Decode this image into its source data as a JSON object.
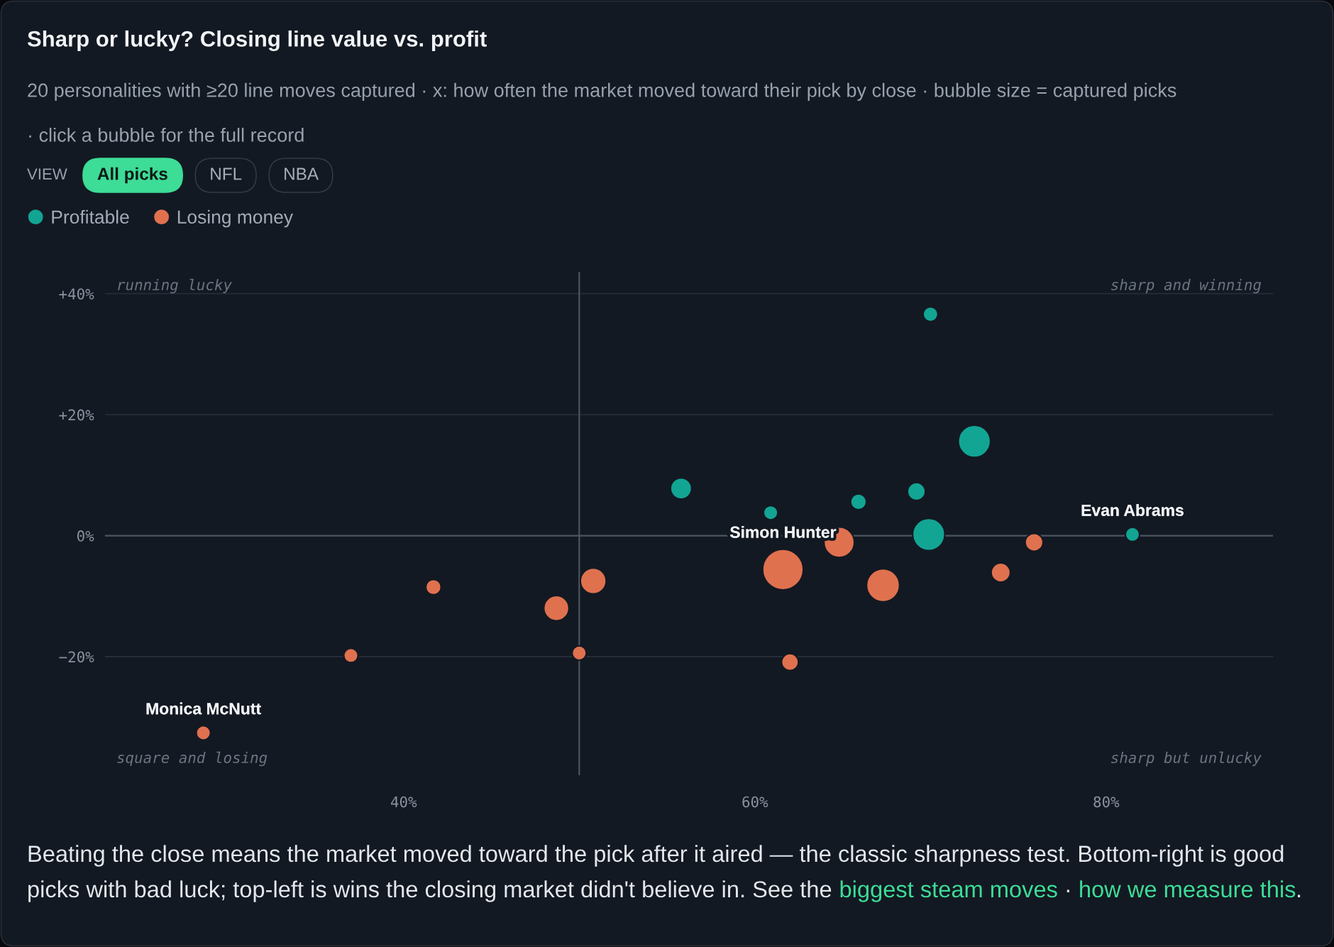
{
  "chart_data": {
    "type": "bubble",
    "title": "Sharp or lucky? Closing line value vs. profit",
    "subtitle": "20 personalities with ≥20 line moves captured · x: how often the market moved toward their pick by close · bubble size = captured picks\n· click a bubble for the full record",
    "xlim": [
      23,
      89.5
    ],
    "ylim": [
      -39.6,
      43.6
    ],
    "xticks": [
      {
        "value": 40,
        "label": "40%"
      },
      {
        "value": 60,
        "label": "60%"
      },
      {
        "value": 80,
        "label": "80%"
      }
    ],
    "yticks": [
      {
        "value": -20,
        "label": "−20%"
      },
      {
        "value": 0,
        "label": "0%"
      },
      {
        "value": 20,
        "label": "+20%"
      },
      {
        "value": 40,
        "label": "+40%"
      }
    ],
    "grid": "y",
    "legend": "top left",
    "marker": "circle",
    "ref_lines": [
      {
        "axis": "y",
        "value": 0,
        "color": "#4b5461"
      },
      {
        "axis": "x",
        "value": 50,
        "color": "#4b5461"
      }
    ],
    "series": [
      {
        "name": "Profitable",
        "color": "#12a594",
        "x": [
          55.8,
          60.9,
          65.9,
          69.2,
          69.9,
          70.0,
          72.5,
          81.5
        ],
        "values": [
          7.8,
          3.8,
          5.6,
          7.3,
          0.2,
          36.6,
          15.6,
          0.2
        ],
        "sizes": [
          0.29,
          0.14,
          0.17,
          0.21,
          0.64,
          0.15,
          0.64,
          0.14
        ]
      },
      {
        "name": "Losing money",
        "color": "#e0714f",
        "x": [
          28.6,
          37.0,
          41.7,
          48.7,
          50.0,
          50.8,
          61.6,
          62.0,
          64.8,
          67.3,
          74.0,
          75.9
        ],
        "values": [
          -32.6,
          -19.8,
          -8.5,
          -12.0,
          -19.4,
          -7.5,
          -5.6,
          -20.9,
          -1.1,
          -8.2,
          -6.1,
          -1.1
        ],
        "sizes": [
          0.14,
          0.14,
          0.16,
          0.4,
          0.14,
          0.42,
          1,
          0.19,
          0.57,
          0.67,
          0.24,
          0.21
        ]
      }
    ],
    "annotations": [
      "running lucky",
      "sharp and winning",
      "square and losing",
      "sharp but unlucky",
      "VIEW",
      "All picks",
      "NFL",
      "NBA",
      "Beating the close means the market moved toward the pick after it aired — the classic sharpness test. Bottom-right is good",
      "picks with bad luck; top-left is wins the closing market didn't believe in. See the",
      "biggest steam moves",
      "·",
      "how we measure this",
      ".",
      {
        "text": "Monica McNutt",
        "x": 28.6,
        "y": -32.6
      },
      {
        "text": "Simon Hunter",
        "x": 61.6,
        "y": -5.6
      },
      {
        "text": "Evan Abrams",
        "x": 81.5,
        "y": 0.2
      }
    ]
  }
}
